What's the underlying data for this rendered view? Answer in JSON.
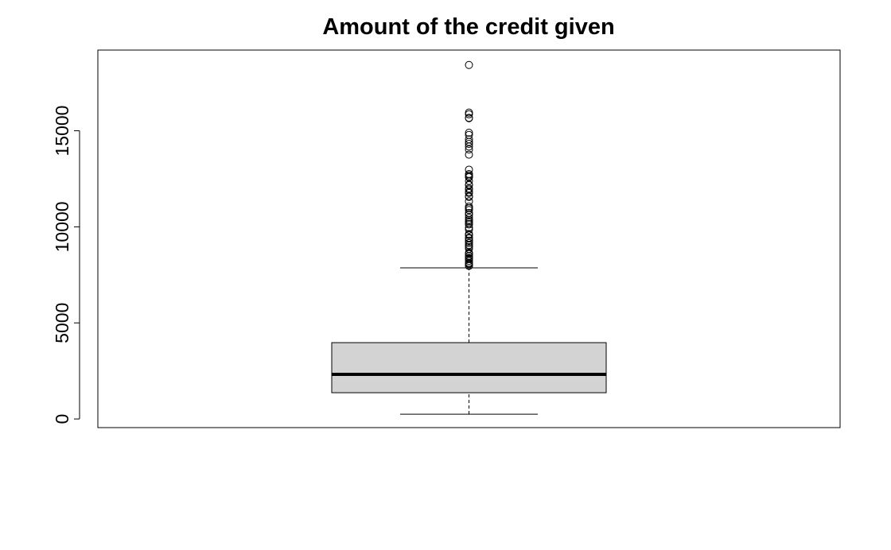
{
  "chart_data": {
    "type": "boxplot",
    "title": "Amount of the credit given",
    "xlabel": "",
    "ylabel": "",
    "ylim": [
      -450,
      19200
    ],
    "yticks": [
      0,
      5000,
      10000,
      15000
    ],
    "ytick_labels": [
      "0",
      "5000",
      "10000",
      "15000"
    ],
    "box": {
      "min": 250,
      "q1": 1366,
      "median": 2320,
      "q3": 3972,
      "whisker_high": 7865,
      "fill": "#d3d3d3"
    },
    "outliers": [
      7966,
      7980,
      8065,
      8072,
      8086,
      8133,
      8229,
      8318,
      8335,
      8358,
      8386,
      8471,
      8487,
      8588,
      8613,
      8648,
      8858,
      8947,
      9034,
      9055,
      9157,
      9271,
      9277,
      9283,
      9398,
      9436,
      9566,
      9572,
      9629,
      9857,
      9960,
      10127,
      10144,
      10222,
      10297,
      10366,
      10477,
      10623,
      10722,
      10875,
      10961,
      10974,
      11054,
      11328,
      11560,
      11590,
      11760,
      11816,
      11938,
      11998,
      12169,
      12204,
      12389,
      12579,
      12612,
      12680,
      12749,
      12976,
      13756,
      14027,
      14179,
      14318,
      14421,
      14555,
      14782,
      14896,
      15653,
      15672,
      15857,
      15945,
      18424
    ],
    "grid": false,
    "legend": "none"
  }
}
